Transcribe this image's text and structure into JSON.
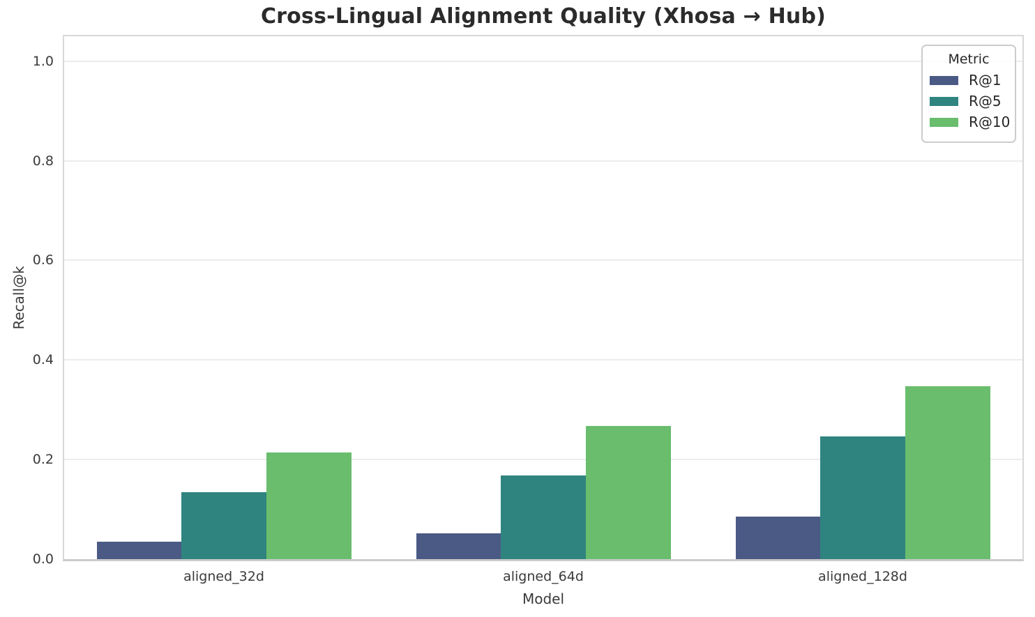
{
  "chart_data": {
    "type": "bar",
    "title": "Cross-Lingual Alignment Quality (Xhosa → Hub)",
    "xlabel": "Model",
    "ylabel": "Recall@k",
    "legend_title": "Metric",
    "legend_position": "upper right",
    "categories": [
      "aligned_32d",
      "aligned_64d",
      "aligned_128d"
    ],
    "series": [
      {
        "name": "R@1",
        "color": "#4a5a85",
        "values": [
          0.035,
          0.052,
          0.085
        ]
      },
      {
        "name": "R@5",
        "color": "#2f847f",
        "values": [
          0.134,
          0.168,
          0.247
        ]
      },
      {
        "name": "R@10",
        "color": "#69bd6d",
        "values": [
          0.214,
          0.268,
          0.347
        ]
      }
    ],
    "ylim": [
      0,
      1.05
    ],
    "yticks": [
      0.0,
      0.2,
      0.4,
      0.6,
      0.8,
      1.0
    ],
    "ytick_labels": [
      "0.0",
      "0.2",
      "0.4",
      "0.6",
      "0.8",
      "1.0"
    ],
    "grid": "horizontal"
  }
}
